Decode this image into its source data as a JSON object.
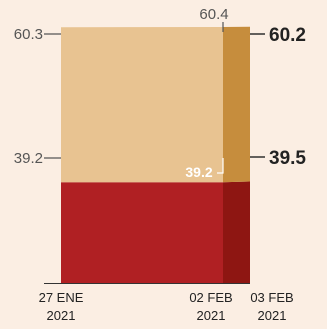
{
  "chart_data": {
    "type": "area",
    "stacked": true,
    "percent": true,
    "x": [
      "27 ENE\n2021",
      "02 FEB\n2021",
      "03 FEB\n2021"
    ],
    "series": [
      {
        "values": [
          39.2,
          39.2,
          39.5
        ],
        "colors": [
          "#b02023",
          "#8e1612"
        ]
      },
      {
        "values": [
          60.3,
          60.4,
          60.2
        ],
        "colors": [
          "#e8c391",
          "#c68d3d"
        ]
      }
    ],
    "ylim": [
      0,
      100
    ],
    "grid": false,
    "legend": "none",
    "annotations": {
      "left": [
        "60.3",
        "39.2"
      ],
      "top_mid": "60.4",
      "inner_mid": "39.2",
      "right": [
        "60.2",
        "39.5"
      ]
    },
    "x_tick_labels": [
      {
        "line1": "27 ENE",
        "line2": "2021"
      },
      {
        "line1": "02 FEB",
        "line2": "2021"
      },
      {
        "line1": "03 FEB",
        "line2": "2021"
      }
    ],
    "colors": {
      "background": "#fbeee3",
      "text": "#222222",
      "label_gray": "#555555",
      "inner_label": "#ffffff"
    }
  }
}
